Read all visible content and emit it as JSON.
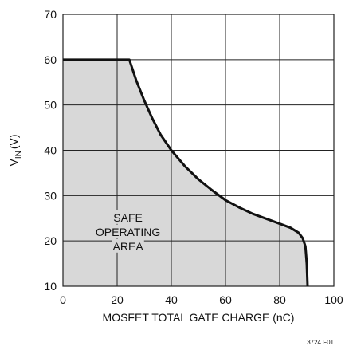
{
  "chart_data": {
    "type": "area",
    "xlabel": "MOSFET TOTAL GATE CHARGE (nC)",
    "ylabel": {
      "main": "V",
      "sub": "IN",
      "unit": "(V)"
    },
    "xlim": [
      0,
      100
    ],
    "ylim": [
      10,
      70
    ],
    "x_ticks": [
      "0",
      "20",
      "40",
      "60",
      "80",
      "100"
    ],
    "y_ticks": [
      "10",
      "20",
      "30",
      "40",
      "50",
      "60",
      "70"
    ],
    "grid": true,
    "fill_color": "#d8d8d8",
    "line_color": "#111111",
    "series": [
      {
        "x": [
          0,
          24.5,
          27,
          30,
          33,
          36,
          40,
          45,
          50,
          55,
          60,
          65,
          70,
          75,
          80,
          84,
          87,
          88.5,
          89.5,
          90,
          90.3
        ],
        "y": [
          60,
          60,
          55.5,
          51,
          47,
          43.5,
          40,
          36.5,
          33.6,
          31.2,
          29,
          27.4,
          26,
          24.9,
          23.8,
          22.9,
          21.8,
          20.6,
          18.8,
          15,
          10
        ]
      }
    ],
    "annotation": {
      "lines": [
        "SAFE",
        "OPERATING",
        "AREA"
      ],
      "x": 24,
      "y": 22
    }
  },
  "figure_id": "3724 F01"
}
